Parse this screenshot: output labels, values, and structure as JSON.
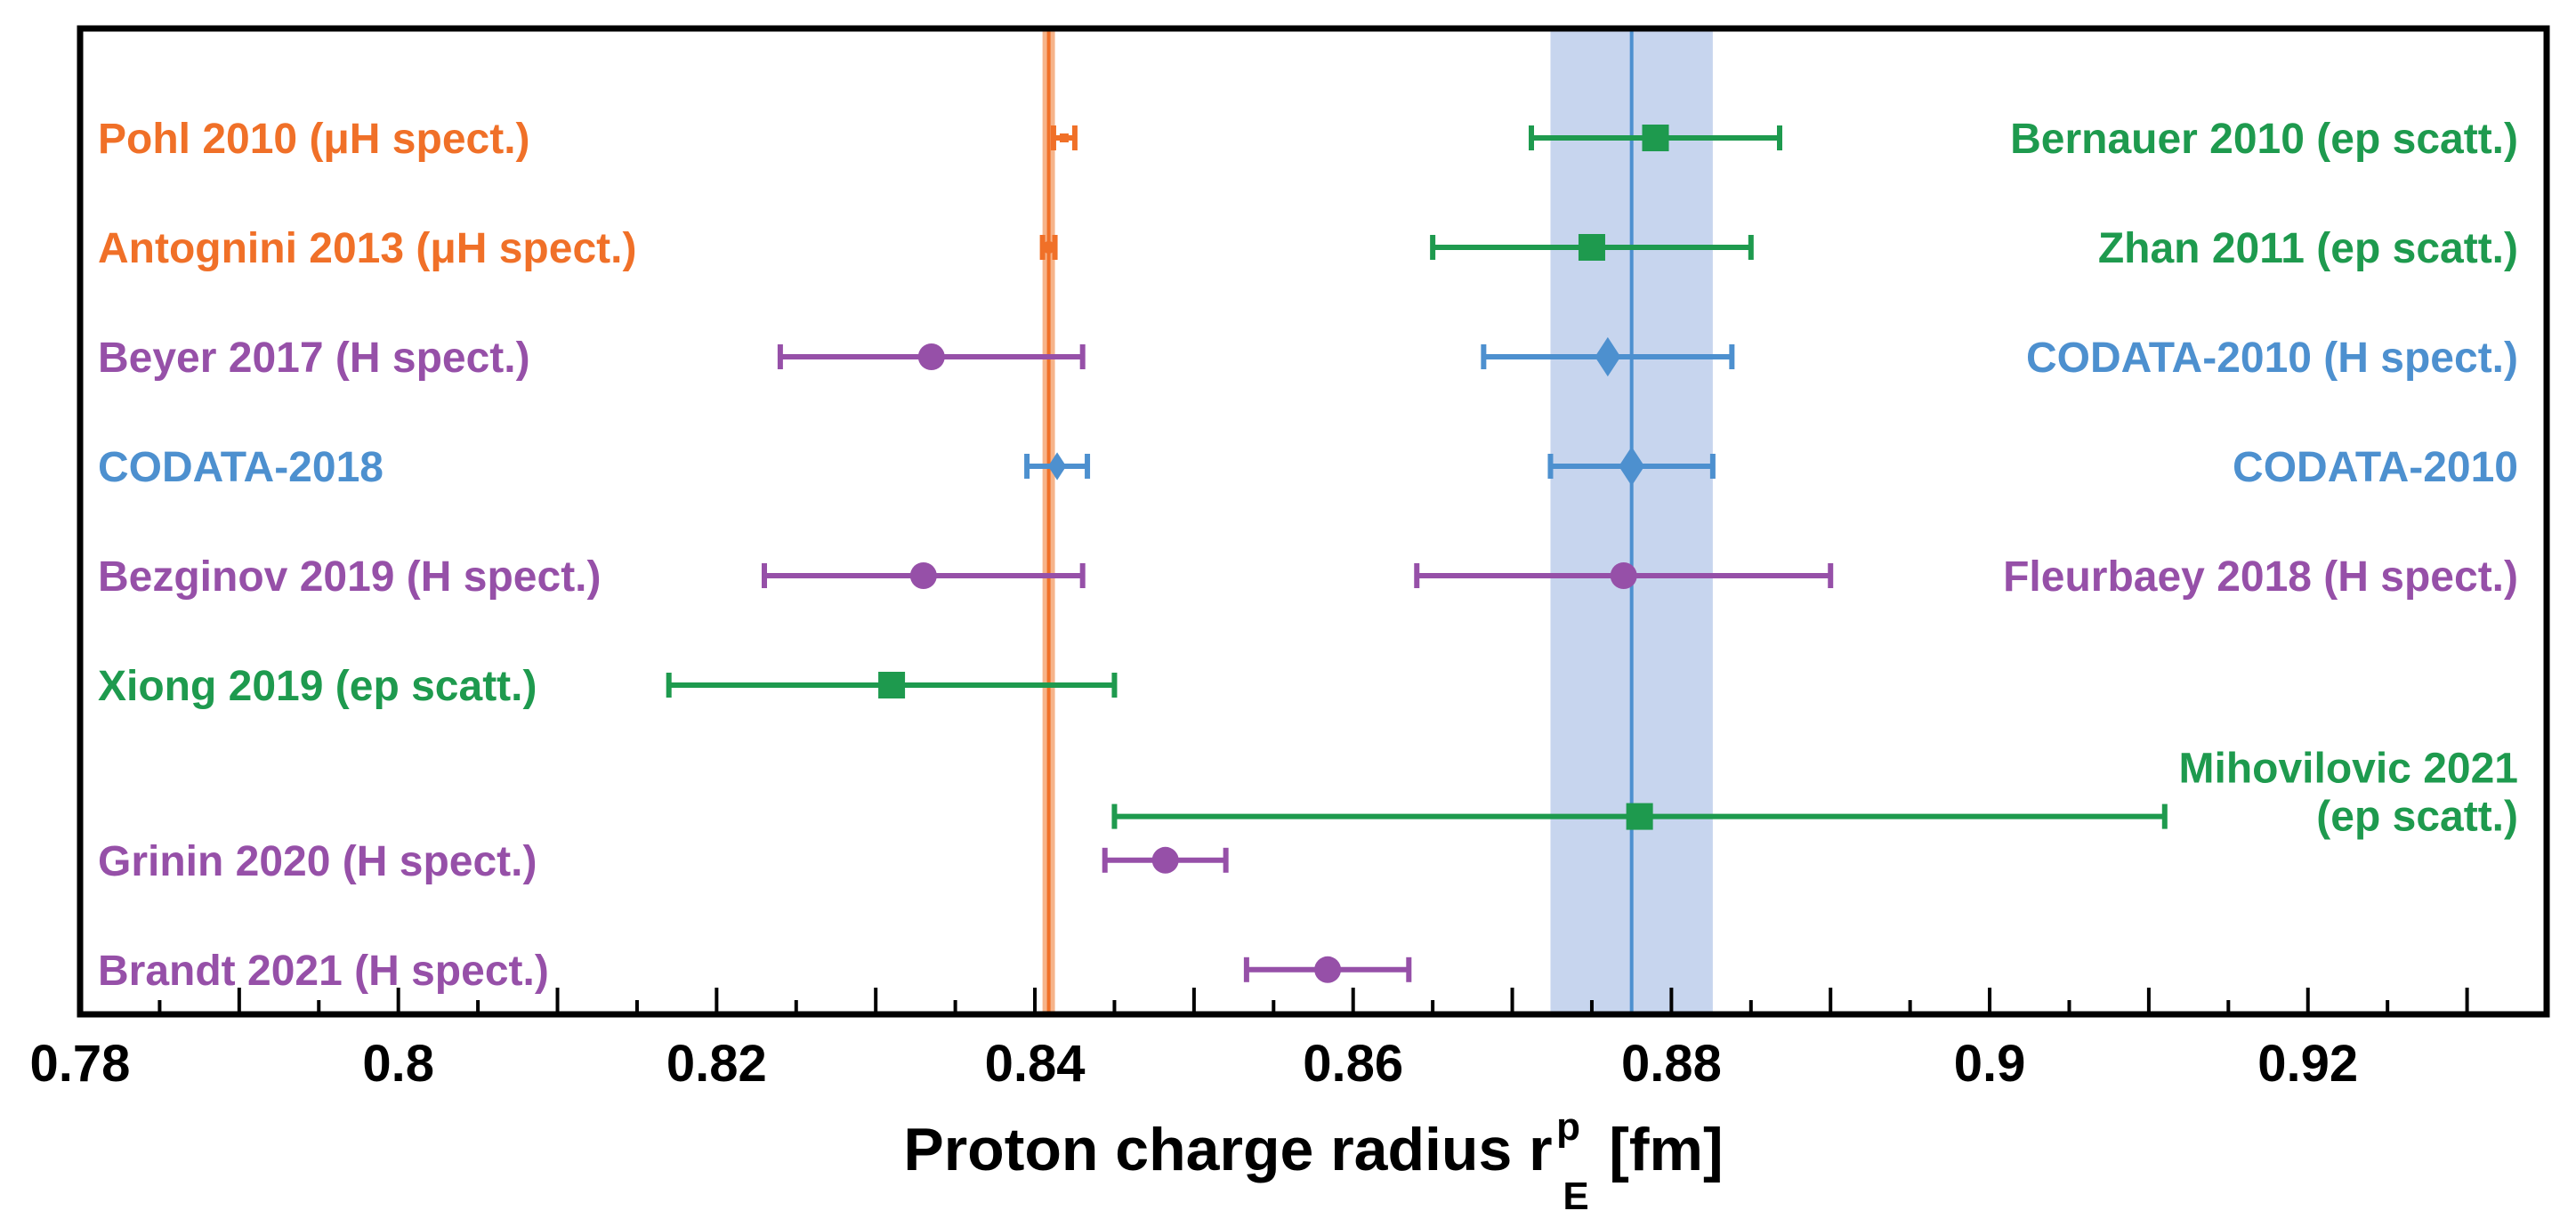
{
  "chart_data": {
    "type": "scatter",
    "title": "",
    "xlabel_main": "Proton charge radius r",
    "xlabel_sup": "p",
    "xlabel_sub": "E",
    "xlabel_unit": "[fm]",
    "ylabel": "",
    "xlim": [
      0.78,
      0.935
    ],
    "grid": false,
    "x_ticks": [
      0.78,
      0.8,
      0.82,
      0.84,
      0.86,
      0.88,
      0.9,
      0.92
    ],
    "x_tick_labels": [
      "0.78",
      "0.8",
      "0.82",
      "0.84",
      "0.86",
      "0.88",
      "0.9",
      "0.92"
    ],
    "minor_tick_step": 0.005,
    "colors": {
      "orange": "#F07028",
      "green": "#1E9A4E",
      "purple": "#9650A8",
      "blue": "#4D90CF",
      "band": "#C7D5EE"
    },
    "reference_lines": [
      {
        "name": "muonic-hydrogen-value",
        "x": 0.84087,
        "half_width": 0.00039,
        "color": "#F07028"
      },
      {
        "name": "codata-2010-value",
        "x": 0.8775,
        "half_width": 0.0051,
        "color": "#4D90CF"
      }
    ],
    "points": [
      {
        "label": "Pohl 2010 (μH spect.)",
        "value": 0.84184,
        "err": 0.00067,
        "color": "#F07028",
        "marker": "square",
        "row": 1,
        "label_side": "left"
      },
      {
        "label": "Antognini 2013 (μH spect.)",
        "value": 0.84087,
        "err": 0.00039,
        "color": "#F07028",
        "marker": "circle",
        "row": 2,
        "label_side": "left"
      },
      {
        "label": "Beyer 2017 (H spect.)",
        "value": 0.8335,
        "err": 0.0095,
        "color": "#9650A8",
        "marker": "circle",
        "row": 3,
        "label_side": "left"
      },
      {
        "label": "CODATA-2018",
        "value": 0.8414,
        "err": 0.0019,
        "color": "#4D90CF",
        "marker": "diamond",
        "row": 4,
        "label_side": "left"
      },
      {
        "label": "Bezginov 2019 (H spect.)",
        "value": 0.833,
        "err": 0.01,
        "color": "#9650A8",
        "marker": "circle",
        "row": 5,
        "label_side": "left"
      },
      {
        "label": "Xiong 2019 (ep scatt.)",
        "value": 0.831,
        "err": 0.014,
        "color": "#1E9A4E",
        "marker": "square",
        "row": 6,
        "label_side": "left"
      },
      {
        "label": "Grinin 2020 (H spect.)",
        "value": 0.8482,
        "err": 0.0038,
        "color": "#9650A8",
        "marker": "circle",
        "row": 7.6,
        "label_side": "left"
      },
      {
        "label": "Brandt 2021 (H spect.)",
        "value": 0.8584,
        "err": 0.0051,
        "color": "#9650A8",
        "marker": "circle",
        "row": 8.6,
        "label_side": "left"
      },
      {
        "label": "Bernauer 2010 (ep scatt.)",
        "value": 0.879,
        "err": 0.0078,
        "color": "#1E9A4E",
        "marker": "square",
        "row": 1,
        "label_side": "right"
      },
      {
        "label": "Zhan 2011 (ep scatt.)",
        "value": 0.875,
        "err": 0.01,
        "color": "#1E9A4E",
        "marker": "square",
        "row": 2,
        "label_side": "right"
      },
      {
        "label": "CODATA-2010 (H spect.)",
        "value": 0.876,
        "err": 0.0078,
        "color": "#4D90CF",
        "marker": "diamond",
        "row": 3,
        "label_side": "right"
      },
      {
        "label": "CODATA-2010",
        "value": 0.8775,
        "err": 0.0051,
        "color": "#4D90CF",
        "marker": "diamond",
        "row": 4,
        "label_side": "right"
      },
      {
        "label": "Fleurbaey 2018 (H spect.)",
        "value": 0.877,
        "err": 0.013,
        "color": "#9650A8",
        "marker": "circle",
        "row": 5,
        "label_side": "right"
      },
      {
        "label": "Mihovilovic 2021\n(ep scatt.)",
        "value": 0.878,
        "err": 0.033,
        "color": "#1E9A4E",
        "marker": "square",
        "row": 7.2,
        "label_side": "right"
      }
    ]
  }
}
